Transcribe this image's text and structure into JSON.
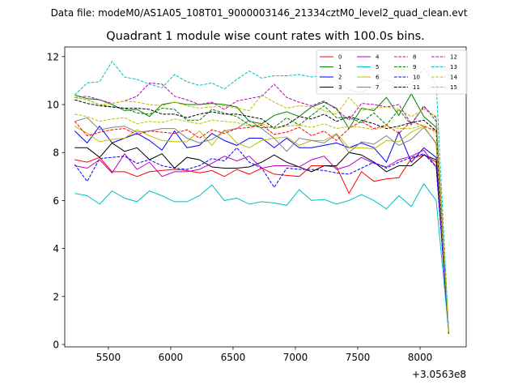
{
  "figure": {
    "suptitle": "Data file: modeM0/AS1A05_108T01_9000003146_21334cztM0_level2_quad_clean.evt"
  },
  "chart_data": {
    "type": "line",
    "title": "Quadrant 1 module wise count rates with 100.0s bins.",
    "xlabel": "",
    "ylabel": "",
    "x_offset_label": "+3.0563e8",
    "xlim": [
      5150,
      8370
    ],
    "ylim": [
      -0.1,
      12.4
    ],
    "x_ticks": [
      5500,
      6000,
      6500,
      7000,
      7500,
      8000
    ],
    "y_ticks": [
      0,
      2,
      4,
      6,
      8,
      10,
      12
    ],
    "grid": false,
    "legend_position": "top-right",
    "x": [
      5230,
      5330,
      5430,
      5530,
      5630,
      5730,
      5830,
      5930,
      6030,
      6130,
      6230,
      6330,
      6430,
      6530,
      6630,
      6730,
      6830,
      6930,
      7030,
      7130,
      7230,
      7330,
      7430,
      7530,
      7630,
      7730,
      7830,
      7930,
      8030,
      8130,
      8230
    ],
    "series": [
      {
        "name": "0",
        "color": "#ff0000",
        "dash": "solid",
        "values": [
          7.7,
          7.6,
          7.8,
          7.2,
          7.2,
          7.0,
          7.2,
          7.25,
          7.3,
          7.25,
          7.15,
          7.25,
          7.0,
          7.3,
          7.1,
          7.35,
          7.1,
          7.05,
          7.0,
          7.45,
          7.45,
          7.4,
          6.3,
          7.2,
          6.8,
          6.9,
          6.95,
          7.75,
          7.9,
          7.6,
          0.5
        ]
      },
      {
        "name": "1",
        "color": "#008000",
        "dash": "solid",
        "values": [
          10.4,
          10.25,
          10.2,
          10.0,
          9.75,
          9.8,
          9.5,
          10.0,
          10.1,
          10.0,
          10.0,
          10.05,
          10.0,
          9.9,
          9.3,
          9.2,
          9.55,
          9.7,
          9.5,
          9.9,
          10.1,
          9.85,
          9.0,
          9.85,
          9.75,
          10.3,
          9.55,
          10.45,
          9.5,
          9.05,
          0.5
        ]
      },
      {
        "name": "2",
        "color": "#0000ff",
        "dash": "solid",
        "values": [
          8.9,
          8.4,
          9.1,
          8.4,
          8.6,
          8.8,
          8.5,
          8.1,
          8.9,
          8.2,
          8.3,
          8.8,
          8.5,
          8.3,
          8.6,
          8.6,
          8.2,
          8.6,
          8.2,
          8.2,
          8.3,
          8.4,
          8.2,
          8.4,
          8.2,
          7.6,
          8.85,
          7.6,
          8.2,
          7.8,
          0.45
        ]
      },
      {
        "name": "3",
        "color": "#000000",
        "dash": "solid",
        "values": [
          8.2,
          8.2,
          7.8,
          8.4,
          8.05,
          8.2,
          7.7,
          7.95,
          7.35,
          7.8,
          7.7,
          7.4,
          7.35,
          7.35,
          7.4,
          7.6,
          7.9,
          7.6,
          7.4,
          7.2,
          7.45,
          7.45,
          8.0,
          7.9,
          7.6,
          7.2,
          7.45,
          7.45,
          7.9,
          7.7,
          0.45
        ]
      },
      {
        "name": "4",
        "color": "#bf00bf",
        "dash": "solid",
        "values": [
          7.45,
          7.35,
          7.7,
          7.15,
          7.95,
          7.3,
          7.6,
          7.0,
          7.2,
          7.2,
          7.3,
          7.55,
          7.85,
          7.65,
          7.85,
          7.35,
          7.45,
          7.45,
          7.4,
          7.7,
          7.85,
          7.3,
          7.45,
          7.8,
          7.55,
          7.4,
          7.7,
          7.85,
          8.1,
          7.4,
          0.5
        ]
      },
      {
        "name": "5",
        "color": "#00bfbf",
        "dash": "solid",
        "values": [
          6.3,
          6.2,
          5.85,
          6.4,
          6.1,
          5.95,
          6.4,
          6.2,
          5.95,
          5.95,
          6.2,
          6.65,
          6.0,
          6.1,
          5.85,
          5.95,
          5.9,
          5.8,
          6.45,
          6.0,
          6.05,
          5.85,
          6.0,
          6.25,
          6.0,
          5.65,
          6.2,
          5.75,
          6.7,
          6.0,
          0.5
        ]
      },
      {
        "name": "6",
        "color": "#bfbf00",
        "dash": "solid",
        "values": [
          9.1,
          8.8,
          8.45,
          8.55,
          8.6,
          8.95,
          8.7,
          8.5,
          8.45,
          8.45,
          8.9,
          8.3,
          8.95,
          8.4,
          8.2,
          8.5,
          8.6,
          8.65,
          8.3,
          8.5,
          8.5,
          8.8,
          8.2,
          8.2,
          8.15,
          8.5,
          8.45,
          8.85,
          9.1,
          8.35,
          0.5
        ]
      },
      {
        "name": "7",
        "color": "#808080",
        "dash": "solid",
        "values": [
          9.3,
          9.45,
          8.95,
          9.05,
          9.1,
          8.85,
          8.9,
          9.0,
          9.0,
          8.6,
          8.4,
          8.55,
          8.9,
          9.0,
          9.35,
          9.0,
          8.6,
          8.05,
          8.6,
          8.5,
          8.4,
          8.75,
          8.0,
          8.45,
          8.35,
          8.7,
          8.3,
          8.55,
          9.05,
          8.4,
          0.5
        ]
      },
      {
        "name": "8",
        "color": "#ff0000",
        "dash": "dashed",
        "values": [
          9.3,
          8.7,
          8.85,
          8.95,
          9.0,
          8.75,
          8.9,
          8.85,
          8.8,
          8.95,
          8.6,
          8.95,
          8.8,
          9.0,
          9.05,
          9.15,
          8.75,
          8.85,
          9.05,
          8.7,
          8.9,
          8.5,
          9.0,
          9.3,
          9.0,
          9.15,
          8.8,
          9.3,
          9.1,
          8.9,
          0.5
        ]
      },
      {
        "name": "9",
        "color": "#008000",
        "dash": "dashed",
        "values": [
          10.3,
          10.2,
          10.0,
          9.9,
          9.85,
          9.65,
          9.6,
          9.85,
          9.8,
          9.35,
          9.35,
          9.8,
          9.65,
          9.5,
          9.15,
          9.05,
          9.05,
          9.45,
          9.15,
          9.55,
          9.95,
          9.45,
          9.45,
          9.25,
          9.65,
          9.15,
          9.8,
          9.15,
          9.95,
          9.3,
          0.45
        ]
      },
      {
        "name": "10",
        "color": "#0000ff",
        "dash": "dashed",
        "values": [
          7.5,
          6.8,
          7.75,
          7.8,
          7.85,
          7.55,
          7.7,
          7.45,
          7.35,
          7.3,
          7.45,
          7.75,
          7.65,
          8.2,
          7.6,
          7.35,
          6.55,
          7.35,
          7.3,
          7.3,
          7.25,
          7.15,
          7.1,
          7.35,
          7.6,
          7.35,
          7.6,
          7.8,
          7.95,
          7.4,
          0.45
        ]
      },
      {
        "name": "11",
        "color": "#000000",
        "dash": "dashed",
        "values": [
          10.2,
          10.05,
          9.95,
          9.9,
          9.85,
          9.85,
          9.8,
          9.6,
          9.6,
          9.45,
          9.6,
          9.7,
          9.6,
          9.6,
          9.5,
          9.4,
          9.0,
          9.15,
          9.5,
          9.4,
          9.6,
          9.3,
          9.5,
          9.35,
          9.2,
          9.0,
          9.1,
          9.25,
          9.35,
          8.9,
          0.45
        ]
      },
      {
        "name": "12",
        "color": "#bf00bf",
        "dash": "dashed",
        "values": [
          10.3,
          10.35,
          10.2,
          10.05,
          10.15,
          10.35,
          10.9,
          10.85,
          10.35,
          10.2,
          10.0,
          10.1,
          9.8,
          10.15,
          10.25,
          10.35,
          10.85,
          10.3,
          10.1,
          9.95,
          10.15,
          9.8,
          9.35,
          10.05,
          10.0,
          9.9,
          10.0,
          9.2,
          9.9,
          9.45,
          0.5
        ]
      },
      {
        "name": "13",
        "color": "#00bfbf",
        "dash": "dashed",
        "values": [
          10.4,
          10.9,
          10.95,
          11.8,
          11.15,
          11.05,
          10.85,
          10.7,
          11.25,
          10.95,
          10.8,
          10.9,
          10.65,
          11.05,
          11.4,
          11.1,
          11.2,
          11.2,
          11.25,
          11.15,
          11.2,
          11.0,
          10.6,
          10.5,
          10.8,
          11.05,
          10.8,
          10.85,
          11.5,
          10.85,
          0.55
        ]
      },
      {
        "name": "14",
        "color": "#bfbf00",
        "dash": "dashed",
        "values": [
          10.3,
          10.2,
          10.0,
          10.05,
          10.15,
          10.1,
          10.0,
          9.95,
          10.1,
          9.95,
          9.85,
          9.9,
          9.95,
          9.85,
          9.75,
          10.4,
          10.1,
          9.85,
          9.95,
          9.9,
          9.75,
          9.6,
          10.3,
          9.75,
          9.85,
          9.9,
          9.8,
          9.5,
          9.8,
          9.5,
          0.5
        ]
      },
      {
        "name": "15",
        "color": "#bfbf00",
        "dash": "dashed",
        "values": [
          9.6,
          9.5,
          9.3,
          9.4,
          9.45,
          9.2,
          9.3,
          9.25,
          9.4,
          9.3,
          9.2,
          9.35,
          9.3,
          9.25,
          9.1,
          9.2,
          9.0,
          9.1,
          9.15,
          9.05,
          9.2,
          9.0,
          9.1,
          9.05,
          8.95,
          9.1,
          9.0,
          9.0,
          9.15,
          8.8,
          0.45
        ]
      }
    ]
  }
}
